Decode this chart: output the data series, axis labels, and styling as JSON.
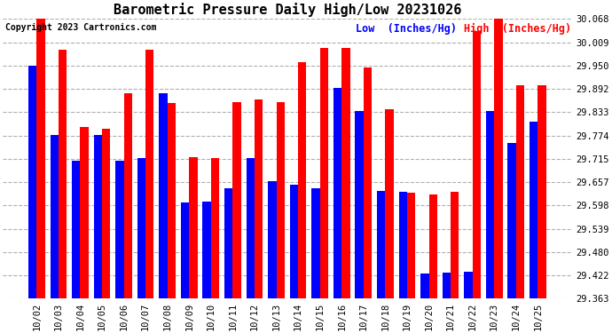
{
  "title": "Barometric Pressure Daily High/Low 20231026",
  "copyright": "Copyright 2023 Cartronics.com",
  "legend_low": "Low  (Inches/Hg)",
  "legend_high": "High  (Inches/Hg)",
  "dates": [
    "10/02",
    "10/03",
    "10/04",
    "10/05",
    "10/06",
    "10/07",
    "10/08",
    "10/09",
    "10/10",
    "10/11",
    "10/12",
    "10/13",
    "10/14",
    "10/15",
    "10/16",
    "10/17",
    "10/18",
    "10/19",
    "10/20",
    "10/21",
    "10/22",
    "10/23",
    "10/24",
    "10/25"
  ],
  "lows": [
    29.95,
    29.775,
    29.71,
    29.775,
    29.71,
    29.718,
    29.88,
    29.605,
    29.607,
    29.64,
    29.718,
    29.66,
    29.65,
    29.64,
    29.893,
    29.835,
    29.635,
    29.632,
    29.425,
    29.428,
    29.43,
    29.835,
    29.755,
    29.81
  ],
  "highs": [
    30.068,
    29.99,
    29.795,
    29.79,
    29.88,
    29.99,
    29.855,
    29.72,
    29.718,
    29.858,
    29.865,
    29.858,
    29.96,
    29.995,
    29.995,
    29.945,
    29.84,
    29.63,
    29.625,
    29.633,
    30.038,
    30.068,
    29.9,
    29.9
  ],
  "ylim_min": 29.363,
  "ylim_max": 30.068,
  "yticks": [
    29.363,
    29.422,
    29.48,
    29.539,
    29.598,
    29.657,
    29.715,
    29.774,
    29.833,
    29.892,
    29.95,
    30.009,
    30.068
  ],
  "bar_width": 0.38,
  "low_color": "#0000ff",
  "high_color": "#ff0000",
  "background_color": "#ffffff",
  "grid_color": "#b0b0b0",
  "title_fontsize": 11,
  "tick_fontsize": 7.5,
  "copyright_fontsize": 7,
  "legend_fontsize": 8.5
}
